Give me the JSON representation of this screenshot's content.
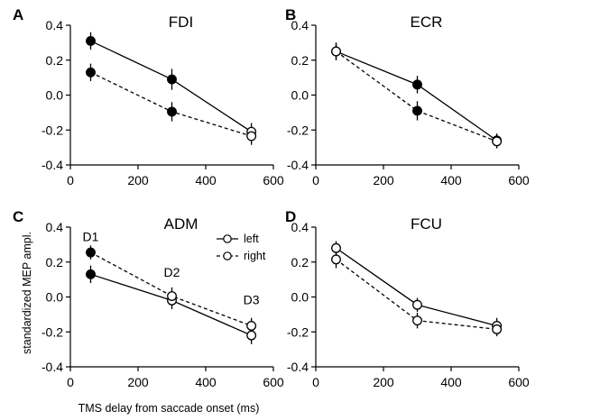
{
  "figure": {
    "xlabel": "TMS delay from saccade onset (ms)",
    "ylabel": "standardized MEP ampl.",
    "legend": [
      {
        "label": "left",
        "dash": false
      },
      {
        "label": "right",
        "dash": true
      }
    ]
  },
  "chart_data": [
    {
      "type": "line",
      "letter": "A",
      "title": "FDI",
      "xlim": [
        0,
        600
      ],
      "ylim": [
        -0.4,
        0.4
      ],
      "xticks": [
        0,
        200,
        400,
        600
      ],
      "yticks": [
        0.4,
        0.2,
        0.0,
        -0.2,
        -0.4
      ],
      "series": [
        {
          "name": "left",
          "dash": false,
          "x": [
            60,
            300,
            535
          ],
          "y": [
            0.31,
            0.09,
            -0.21
          ],
          "err": [
            0.05,
            0.06,
            0.05
          ],
          "filled": [
            true,
            true,
            false
          ]
        },
        {
          "name": "right",
          "dash": true,
          "x": [
            60,
            300,
            535
          ],
          "y": [
            0.13,
            -0.095,
            -0.235
          ],
          "err": [
            0.05,
            0.055,
            0.05
          ],
          "filled": [
            true,
            true,
            false
          ]
        }
      ]
    },
    {
      "type": "line",
      "letter": "B",
      "title": "ECR",
      "xlim": [
        0,
        600
      ],
      "ylim": [
        -0.4,
        0.4
      ],
      "xticks": [
        0,
        200,
        400,
        600
      ],
      "yticks": [
        0.4,
        0.2,
        0.0,
        -0.2,
        -0.4
      ],
      "series": [
        {
          "name": "left",
          "dash": false,
          "x": [
            60,
            300,
            535
          ],
          "y": [
            0.25,
            0.06,
            -0.26
          ],
          "err": [
            0.05,
            0.05,
            0.04
          ],
          "filled": [
            false,
            true,
            false
          ]
        },
        {
          "name": "right",
          "dash": true,
          "x": [
            60,
            300,
            535
          ],
          "y": [
            0.25,
            -0.09,
            -0.265
          ],
          "err": [
            0.05,
            0.055,
            0.04
          ],
          "filled": [
            false,
            true,
            false
          ]
        }
      ]
    },
    {
      "type": "line",
      "letter": "C",
      "title": "ADM",
      "xlim": [
        0,
        600
      ],
      "ylim": [
        -0.4,
        0.4
      ],
      "xticks": [
        0,
        200,
        400,
        600
      ],
      "yticks": [
        0.4,
        0.2,
        0.0,
        -0.2,
        -0.4
      ],
      "annotations": [
        {
          "text": "D1",
          "x": 60,
          "y": 0.32
        },
        {
          "text": "D2",
          "x": 300,
          "y": 0.115
        },
        {
          "text": "D3",
          "x": 535,
          "y": -0.04
        }
      ],
      "series": [
        {
          "name": "left",
          "dash": false,
          "x": [
            60,
            300,
            535
          ],
          "y": [
            0.13,
            -0.02,
            -0.22
          ],
          "err": [
            0.05,
            0.05,
            0.05
          ],
          "filled": [
            true,
            false,
            false
          ]
        },
        {
          "name": "right",
          "dash": true,
          "x": [
            60,
            300,
            535
          ],
          "y": [
            0.255,
            0.005,
            -0.165
          ],
          "err": [
            0.04,
            0.05,
            0.045
          ],
          "filled": [
            true,
            false,
            false
          ]
        }
      ]
    },
    {
      "type": "line",
      "letter": "D",
      "title": "FCU",
      "xlim": [
        0,
        600
      ],
      "ylim": [
        -0.4,
        0.4
      ],
      "xticks": [
        0,
        200,
        400,
        600
      ],
      "yticks": [
        0.4,
        0.2,
        0.0,
        -0.2,
        -0.4
      ],
      "series": [
        {
          "name": "left",
          "dash": false,
          "x": [
            60,
            300,
            535
          ],
          "y": [
            0.28,
            -0.045,
            -0.165
          ],
          "err": [
            0.04,
            0.04,
            0.045
          ],
          "filled": [
            false,
            false,
            false
          ]
        },
        {
          "name": "right",
          "dash": true,
          "x": [
            60,
            300,
            535
          ],
          "y": [
            0.215,
            -0.135,
            -0.185
          ],
          "err": [
            0.05,
            0.045,
            0.04
          ],
          "filled": [
            false,
            false,
            false
          ]
        }
      ]
    }
  ]
}
